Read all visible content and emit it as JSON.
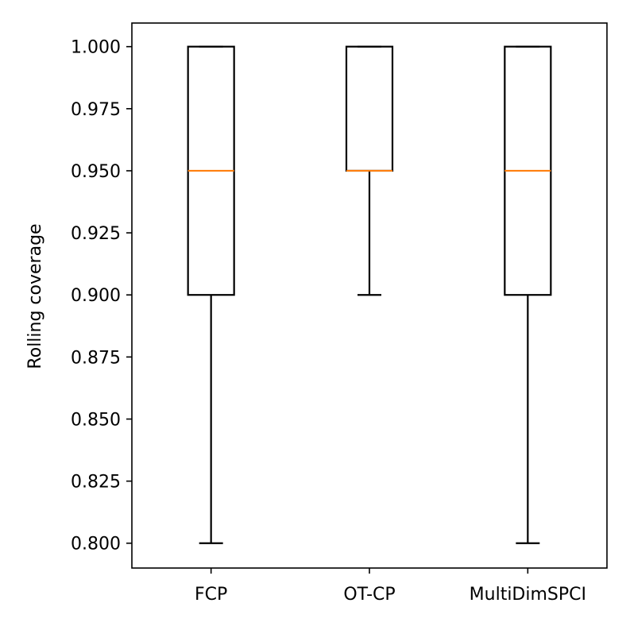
{
  "chart_data": {
    "type": "box",
    "title": "",
    "xlabel": "",
    "ylabel": "Rolling coverage",
    "ylim": [
      0.79,
      1.0095
    ],
    "yticks": [
      "0.800",
      "0.825",
      "0.850",
      "0.875",
      "0.900",
      "0.925",
      "0.950",
      "0.975",
      "1.000"
    ],
    "grid": false,
    "categories": [
      "FCP",
      "OT-CP",
      "MultiDimSPCI"
    ],
    "boxes": [
      {
        "whisker_low": 0.8,
        "q1": 0.9,
        "median": 0.95,
        "q3": 1.0,
        "whisker_high": 1.0
      },
      {
        "whisker_low": 0.9,
        "q1": 0.95,
        "median": 0.95,
        "q3": 1.0,
        "whisker_high": 1.0
      },
      {
        "whisker_low": 0.8,
        "q1": 0.9,
        "median": 0.95,
        "q3": 1.0,
        "whisker_high": 1.0
      }
    ],
    "colors": {
      "box": "#000000",
      "median": "#ff7f0e"
    }
  }
}
